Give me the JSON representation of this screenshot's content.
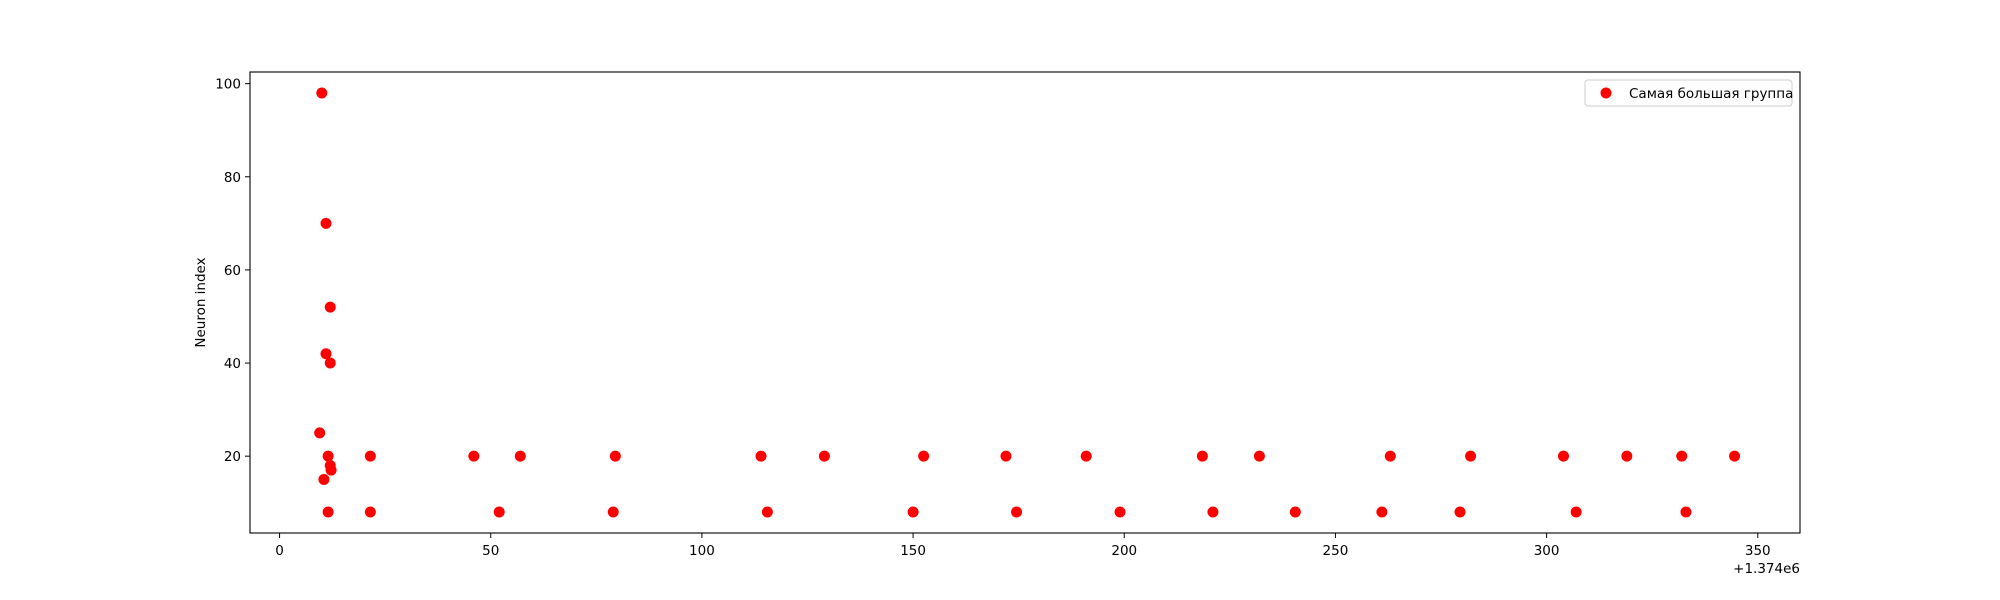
{
  "chart_data": {
    "type": "scatter",
    "title": "",
    "xlabel": "",
    "ylabel": "Neuron index",
    "x_offset_label": "+1.374e6",
    "xlim": [
      1373993,
      1374360
    ],
    "ylim": [
      3.5,
      102.5
    ],
    "x_ticks": [
      0,
      50,
      100,
      150,
      200,
      250,
      300,
      350
    ],
    "y_ticks": [
      20,
      40,
      60,
      80,
      100
    ],
    "grid": false,
    "legend_position": "top-right",
    "series": [
      {
        "name": "Самая большая группа",
        "color": "#ff0000",
        "x": [
          1374010.0,
          1374011.0,
          1374012.0,
          1374011.0,
          1374012.0,
          1374009.5,
          1374011.5,
          1374012.0,
          1374012.2,
          1374010.5,
          1374011.5,
          1374021.5,
          1374021.5,
          1374046.0,
          1374052.0,
          1374057.0,
          1374079.5,
          1374079.0,
          1374114.0,
          1374115.5,
          1374129.0,
          1374150.0,
          1374152.5,
          1374172.0,
          1374174.5,
          1374191.0,
          1374199.0,
          1374218.5,
          1374221.0,
          1374232.0,
          1374240.5,
          1374261.0,
          1374263.0,
          1374279.5,
          1374282.0,
          1374304.0,
          1374307.0,
          1374319.0,
          1374332.0,
          1374333.0,
          1374344.5
        ],
        "y": [
          98,
          70,
          52,
          42,
          40,
          25,
          20,
          18,
          17,
          15,
          8,
          20,
          8,
          20,
          8,
          20,
          20,
          8,
          20,
          8,
          20,
          8,
          20,
          20,
          8,
          20,
          8,
          20,
          8,
          20,
          8,
          8,
          20,
          8,
          20,
          20,
          8,
          20,
          20,
          8,
          20
        ]
      }
    ]
  }
}
